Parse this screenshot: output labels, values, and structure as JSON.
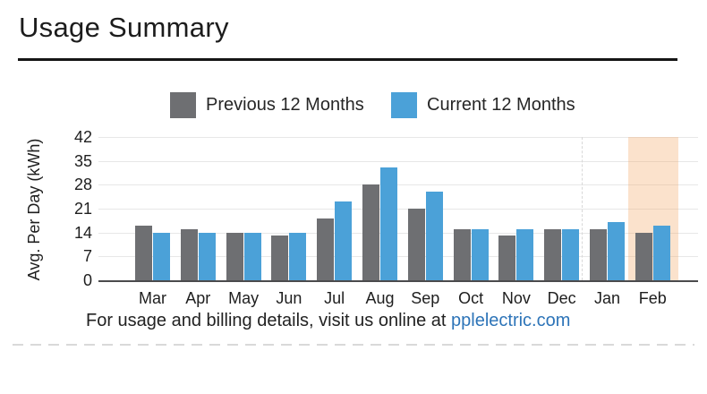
{
  "page": {
    "title": "Usage Summary",
    "footer_text": "For usage and billing details, visit us online at ",
    "footer_link": "pplelectric.com"
  },
  "legend": {
    "previous": {
      "label": "Previous 12 Months",
      "color": "#6e6f72"
    },
    "current": {
      "label": "Current 12 Months",
      "color": "#4ba1d8"
    }
  },
  "chart_data": {
    "type": "bar",
    "title": "Usage Summary",
    "ylabel": "Avg. Per Day (kWh)",
    "categories": [
      "Mar",
      "Apr",
      "May",
      "Jun",
      "Jul",
      "Aug",
      "Sep",
      "Oct",
      "Nov",
      "Dec",
      "Jan",
      "Feb"
    ],
    "series": [
      {
        "name": "Previous 12 Months",
        "color": "#6e6f72",
        "values": [
          16,
          15,
          14,
          13,
          18,
          28,
          21,
          15,
          13,
          15,
          15,
          14
        ]
      },
      {
        "name": "Current 12 Months",
        "color": "#4ba1d8",
        "values": [
          14,
          14,
          14,
          14,
          23,
          33,
          26,
          15,
          15,
          15,
          17,
          16
        ]
      }
    ],
    "ylim": [
      0,
      42
    ],
    "yticks": [
      0,
      7,
      14,
      21,
      28,
      35,
      42
    ],
    "grid": true,
    "legend_position": "top",
    "highlight": {
      "category": "Feb",
      "color": "rgba(244,172,109,0.35)"
    },
    "separator_before_category": "Jan"
  },
  "colors": {
    "series_gray": "#6e6f72",
    "series_blue": "#4ba1d8",
    "highlight_peach": "#fbe2cc",
    "gridline": "#e7e7e7",
    "axis": "#4b4b4d",
    "link_blue": "#2d74b8"
  }
}
